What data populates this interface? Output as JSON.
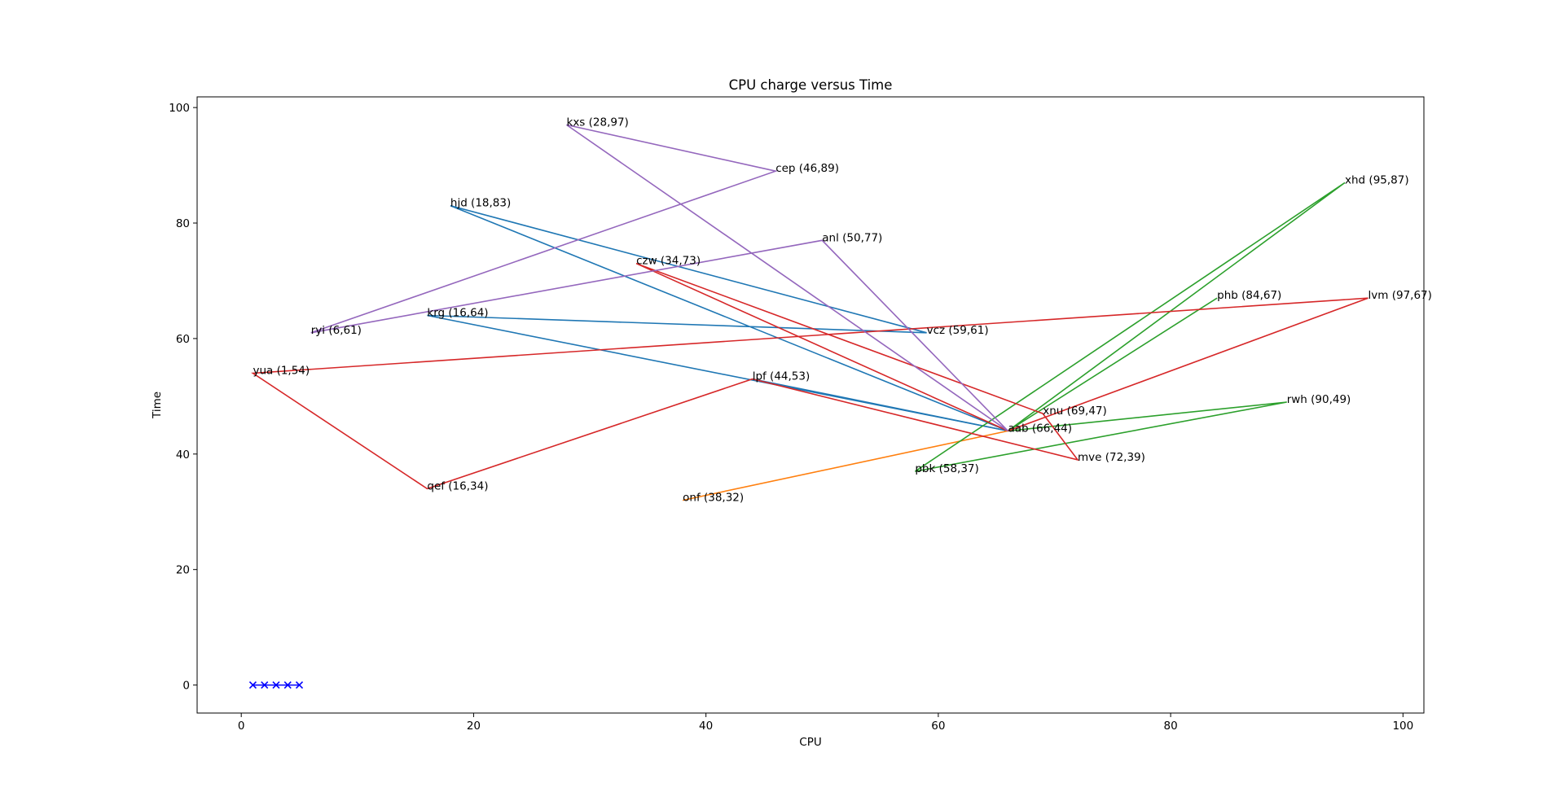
{
  "chart_data": {
    "type": "line",
    "title": "CPU charge versus Time",
    "xlabel": "CPU",
    "ylabel": "Time",
    "xlim": [
      -3.8,
      101.8
    ],
    "ylim": [
      -4.85,
      101.85
    ],
    "xticks": [
      0,
      20,
      40,
      60,
      80,
      100
    ],
    "yticks": [
      0,
      20,
      40,
      60,
      80,
      100
    ],
    "grid": false,
    "hub": {
      "name": "aab",
      "x": 66,
      "y": 44
    },
    "points": [
      {
        "name": "kxs",
        "x": 28,
        "y": 97,
        "label": "kxs (28,97)"
      },
      {
        "name": "cep",
        "x": 46,
        "y": 89,
        "label": "cep (46,89)"
      },
      {
        "name": "hjd",
        "x": 18,
        "y": 83,
        "label": "hjd (18,83)"
      },
      {
        "name": "anl",
        "x": 50,
        "y": 77,
        "label": "anl (50,77)"
      },
      {
        "name": "czw",
        "x": 34,
        "y": 73,
        "label": "czw (34,73)"
      },
      {
        "name": "krg",
        "x": 16,
        "y": 64,
        "label": "krg (16,64)"
      },
      {
        "name": "ryi",
        "x": 6,
        "y": 61,
        "label": "ryi (6,61)"
      },
      {
        "name": "vcz",
        "x": 59,
        "y": 61,
        "label": "vcz (59,61)"
      },
      {
        "name": "yua",
        "x": 1,
        "y": 54,
        "label": "yua (1,54)"
      },
      {
        "name": "lpf",
        "x": 44,
        "y": 53,
        "label": "lpf (44,53)"
      },
      {
        "name": "qef",
        "x": 16,
        "y": 34,
        "label": "qef (16,34)"
      },
      {
        "name": "onf",
        "x": 38,
        "y": 32,
        "label": "onf (38,32)"
      },
      {
        "name": "xhd",
        "x": 95,
        "y": 87,
        "label": "xhd (95,87)"
      },
      {
        "name": "phb",
        "x": 84,
        "y": 67,
        "label": "phb (84,67)"
      },
      {
        "name": "lvm",
        "x": 97,
        "y": 67,
        "label": "lvm (97,67)"
      },
      {
        "name": "xnu",
        "x": 69,
        "y": 47,
        "label": "xnu (69,47)"
      },
      {
        "name": "rwh",
        "x": 90,
        "y": 49,
        "label": "rwh (90,49)"
      },
      {
        "name": "mve",
        "x": 72,
        "y": 39,
        "label": "mve (72,39)"
      },
      {
        "name": "pbk",
        "x": 58,
        "y": 37,
        "label": "pbk (58,37)"
      },
      {
        "name": "aab",
        "x": 66,
        "y": 44,
        "label": "aab (66,44)"
      }
    ],
    "series": [
      {
        "color": "#1f77b4",
        "paths": [
          [
            [
              66,
              44
            ],
            [
              16,
              64
            ],
            [
              59,
              61
            ],
            [
              18,
              83
            ],
            [
              66,
              44
            ]
          ],
          [
            [
              66,
              44
            ],
            [
              44,
              53
            ]
          ]
        ]
      },
      {
        "color": "#ff7f0e",
        "paths": [
          [
            [
              66,
              44
            ],
            [
              38,
              32
            ]
          ]
        ]
      },
      {
        "color": "#2ca02c",
        "paths": [
          [
            [
              66,
              44
            ],
            [
              95,
              87
            ],
            [
              58,
              37
            ],
            [
              90,
              49
            ],
            [
              66,
              44
            ],
            [
              84,
              67
            ]
          ]
        ]
      },
      {
        "color": "#d62728",
        "paths": [
          [
            [
              66,
              44
            ],
            [
              34,
              73
            ],
            [
              69,
              47
            ],
            [
              72,
              39
            ],
            [
              44,
              53
            ],
            [
              16,
              34
            ],
            [
              1,
              54
            ],
            [
              97,
              67
            ],
            [
              66,
              44
            ]
          ]
        ]
      },
      {
        "color": "#9467bd",
        "paths": [
          [
            [
              66,
              44
            ],
            [
              28,
              97
            ],
            [
              46,
              89
            ],
            [
              6,
              61
            ],
            [
              50,
              77
            ],
            [
              66,
              44
            ]
          ]
        ]
      }
    ],
    "markers": {
      "color": "#0000ff",
      "symbol": "x",
      "points": [
        [
          1,
          0
        ],
        [
          2,
          0
        ],
        [
          3,
          0
        ],
        [
          4,
          0
        ],
        [
          5,
          0
        ]
      ]
    }
  }
}
